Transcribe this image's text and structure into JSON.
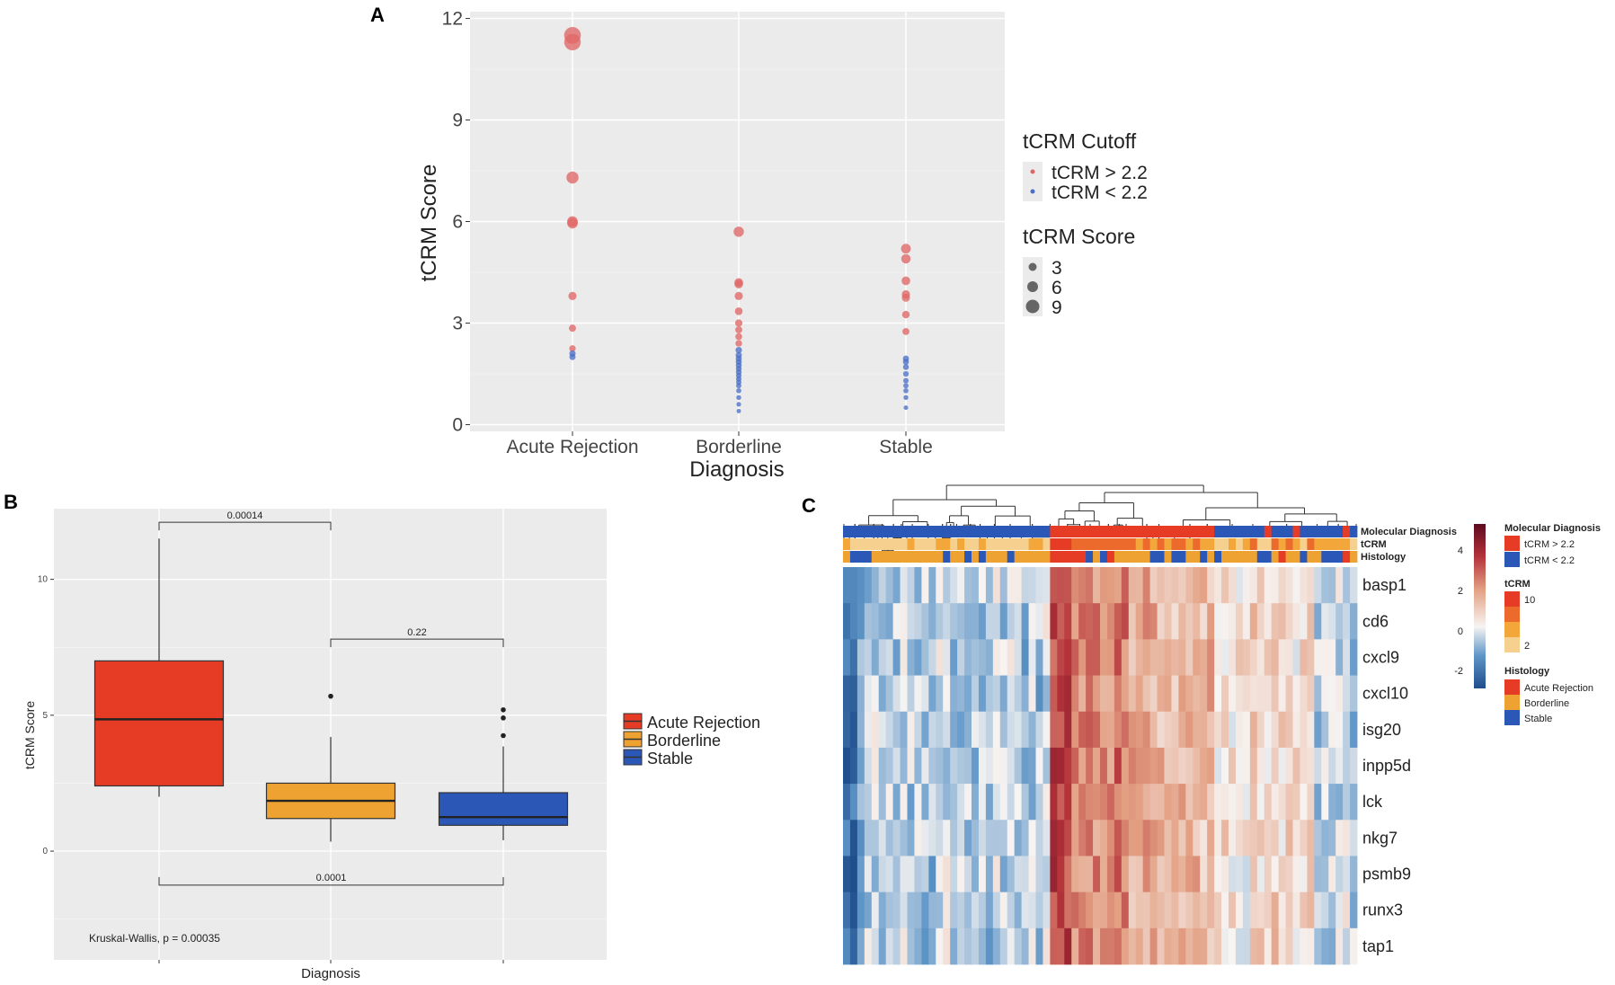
{
  "chart_data": [
    {
      "panel": "A",
      "type": "scatter",
      "xlabel": "Diagnosis",
      "ylabel": "tCRM Score",
      "ylim": [
        -0.2,
        12.2
      ],
      "yticks": [
        0,
        3,
        6,
        9,
        12
      ],
      "categories": [
        "Acute Rejection",
        "Borderline",
        "Stable"
      ],
      "series": [
        {
          "name": "Acute Rejection",
          "values": [
            11.5,
            11.3,
            7.3,
            6.0,
            5.95,
            3.8,
            2.85,
            2.25,
            2.1,
            2.0
          ]
        },
        {
          "name": "Borderline",
          "values": [
            5.7,
            4.2,
            4.15,
            3.8,
            3.35,
            3.0,
            2.8,
            2.6,
            2.4,
            2.2,
            2.05,
            1.95,
            1.85,
            1.75,
            1.65,
            1.55,
            1.45,
            1.35,
            1.25,
            1.15,
            1.0,
            0.8,
            0.6,
            0.4
          ]
        },
        {
          "name": "Stable",
          "values": [
            5.2,
            4.9,
            4.25,
            3.85,
            3.75,
            3.25,
            2.75,
            1.95,
            1.85,
            1.7,
            1.5,
            1.3,
            1.15,
            1.0,
            0.8,
            0.5
          ]
        }
      ],
      "cutoff": 2.2,
      "legend": {
        "cutoff_title": "tCRM Cutoff",
        "cutoff_entries": [
          "tCRM > 2.2",
          "tCRM < 2.2"
        ],
        "score_title": "tCRM Score",
        "score_entries": [
          "3",
          "6",
          "9"
        ]
      },
      "colors": {
        "above": "#e06666",
        "below": "#4a6fc8"
      }
    },
    {
      "panel": "B",
      "type": "boxplot",
      "xlabel": "Diagnosis",
      "ylabel": "tCRM Score",
      "ylim": [
        -4,
        12.6
      ],
      "yticks": [
        0,
        5,
        10
      ],
      "categories": [
        "Acute Rejection",
        "Borderline",
        "Stable"
      ],
      "boxes": [
        {
          "name": "Acute Rejection",
          "min": 2.0,
          "q1": 2.4,
          "median": 4.85,
          "q3": 7.0,
          "max": 11.5,
          "outliers": []
        },
        {
          "name": "Borderline",
          "min": 0.35,
          "q1": 1.2,
          "median": 1.85,
          "q3": 2.5,
          "max": 4.2,
          "outliers": [
            5.7
          ]
        },
        {
          "name": "Stable",
          "min": 0.4,
          "q1": 0.95,
          "median": 1.25,
          "q3": 2.15,
          "max": 3.85,
          "outliers": [
            5.2,
            4.9,
            4.25
          ]
        }
      ],
      "comparisons": [
        {
          "from": 0,
          "to": 1,
          "label": "0.00014",
          "y": 12.1
        },
        {
          "from": 1,
          "to": 2,
          "label": "0.22",
          "y": 7.8
        },
        {
          "from": 0,
          "to": 2,
          "label": "0.0001",
          "y": -1.25
        }
      ],
      "test_label": "Kruskal-Wallis, p = 0.00035",
      "legend": [
        "Acute Rejection",
        "Borderline",
        "Stable"
      ],
      "colors": {
        "Acute Rejection": "#e63c26",
        "Borderline": "#eea232",
        "Stable": "#2b57b7"
      }
    },
    {
      "panel": "C",
      "type": "heatmap",
      "genes": [
        "basp1",
        "cd6",
        "cxcl9",
        "cxcl10",
        "isg20",
        "inpp5d",
        "lck",
        "nkg7",
        "psmb9",
        "runx3",
        "tap1"
      ],
      "annotation_rows": [
        "Molecular Diagnosis",
        "tCRM",
        "Histology"
      ],
      "color_scale": {
        "ticks": [
          "4",
          "2",
          "0",
          "-2"
        ],
        "min": -3,
        "max": 5
      },
      "legend": {
        "molecular_title": "Molecular Diagnosis",
        "molecular_entries": [
          "tCRM > 2.2",
          "tCRM < 2.2"
        ],
        "tcrm_title": "tCRM",
        "tcrm_entries": [
          "10",
          "2"
        ],
        "histology_title": "Histology",
        "histology_entries": [
          "Acute Rejection",
          "Borderline",
          "Stable"
        ]
      }
    }
  ],
  "panels": {
    "a": "A",
    "b": "B",
    "c": "C"
  }
}
